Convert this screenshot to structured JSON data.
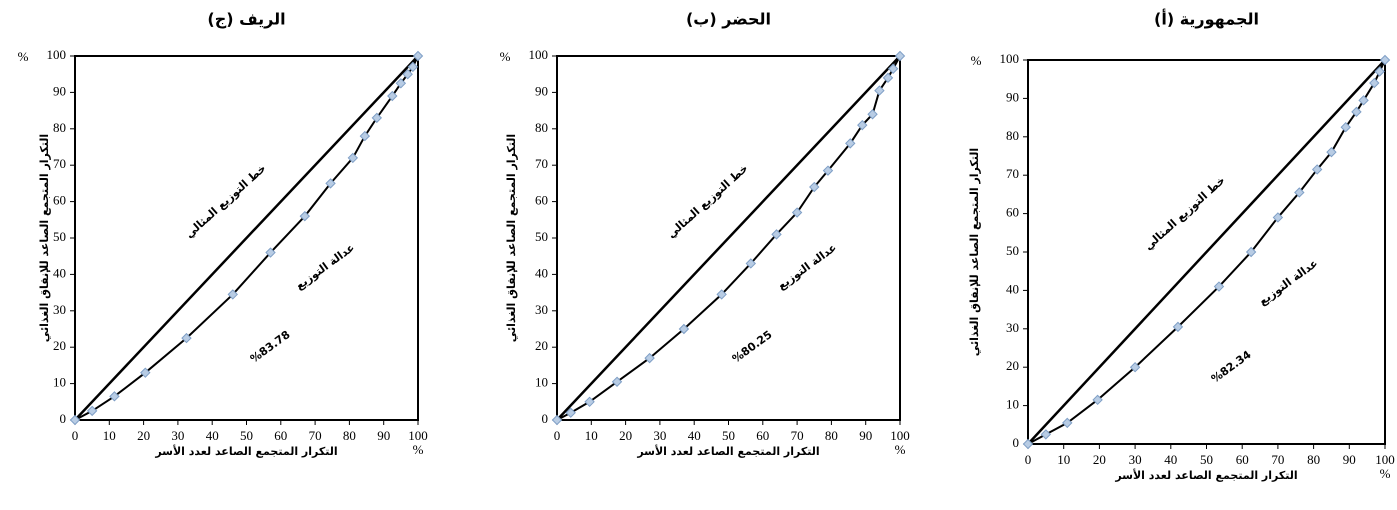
{
  "chart_data": [
    {
      "type": "line",
      "title": "(ج) الريف",
      "x_label": "التكرار المتجمع الصاعد لعدد الأسر",
      "y_label": "التكرار المتجمع الصاعد للإنفاق الغذائي",
      "x_unit": "%",
      "y_unit": "%",
      "equality_label": "خط التوزيع المثالي",
      "curve_label": "عدالة التوزيع",
      "equity_value": "%83.78",
      "xlim": [
        0,
        100
      ],
      "ylim": [
        0,
        100
      ],
      "xticks": [
        0,
        10,
        20,
        30,
        40,
        50,
        60,
        70,
        80,
        90,
        100
      ],
      "yticks": [
        0,
        10,
        20,
        30,
        40,
        50,
        60,
        70,
        80,
        90,
        100
      ],
      "series": [
        {
          "color": "#000000",
          "x": [
            0,
            100
          ],
          "values": [
            0,
            100
          ]
        },
        {
          "color": "#000000",
          "marker_color": "#b8cce4",
          "x": [
            0,
            5,
            11.5,
            20.5,
            32.5,
            46,
            57,
            67,
            74.5,
            81,
            84.5,
            88,
            92.5,
            95,
            97,
            98.5,
            100
          ],
          "values": [
            0,
            2.5,
            6.5,
            13,
            22.5,
            34.5,
            46,
            56,
            65,
            72,
            78,
            83,
            89,
            92.5,
            95,
            97,
            100
          ]
        }
      ]
    },
    {
      "type": "line",
      "title": "(ب) الحضر",
      "x_label": "التكرار المتجمع الصاعد لعدد الأسر",
      "y_label": "التكرار المتجمع الصاعد للإنفاق الغذائي",
      "x_unit": "%",
      "y_unit": "%",
      "equality_label": "خط التوزيع المثالي",
      "curve_label": "عدالة التوزيع",
      "equity_value": "%80.25",
      "xlim": [
        0,
        100
      ],
      "ylim": [
        0,
        100
      ],
      "xticks": [
        0,
        10,
        20,
        30,
        40,
        50,
        60,
        70,
        80,
        90,
        100
      ],
      "yticks": [
        0,
        10,
        20,
        30,
        40,
        50,
        60,
        70,
        80,
        90,
        100
      ],
      "series": [
        {
          "color": "#000000",
          "x": [
            0,
            100
          ],
          "values": [
            0,
            100
          ]
        },
        {
          "color": "#000000",
          "marker_color": "#b8cce4",
          "x": [
            0,
            4,
            9.5,
            17.5,
            27,
            37,
            48,
            56.5,
            64,
            70,
            75,
            79,
            85.5,
            89,
            92,
            94,
            96.5,
            98,
            100
          ],
          "values": [
            0,
            2,
            5,
            10.5,
            17,
            25,
            34.5,
            43,
            51,
            57,
            64,
            68.5,
            76,
            81,
            84,
            90.5,
            94,
            96.5,
            100
          ]
        }
      ]
    },
    {
      "type": "line",
      "title": "(أ) الجمهورية",
      "x_label": "التكرار المتجمع الصاعد لعدد الأسر",
      "y_label": "التكرار المتجمع الصاعد للإنفاق الغذائي",
      "x_unit": "%",
      "y_unit": "%",
      "equality_label": "خط التوزيع المثالي",
      "curve_label": "عدالة التوزيع",
      "equity_value": "%82.34",
      "xlim": [
        0,
        100
      ],
      "ylim": [
        0,
        100
      ],
      "xticks": [
        0,
        10,
        20,
        30,
        40,
        50,
        60,
        70,
        80,
        90,
        100
      ],
      "yticks": [
        0,
        10,
        20,
        30,
        40,
        50,
        60,
        70,
        80,
        90,
        100
      ],
      "series": [
        {
          "color": "#000000",
          "x": [
            0,
            100
          ],
          "values": [
            0,
            100
          ]
        },
        {
          "color": "#000000",
          "marker_color": "#b8cce4",
          "x": [
            0,
            5,
            11,
            19.5,
            30,
            42,
            53.5,
            62.5,
            70,
            76,
            81,
            85,
            89,
            92,
            94,
            97,
            98.5,
            100
          ],
          "values": [
            0,
            2.5,
            5.5,
            11.5,
            20,
            30.5,
            41,
            50,
            59,
            65.5,
            71.5,
            76,
            82.5,
            86.5,
            89.5,
            94,
            97,
            100
          ]
        }
      ]
    }
  ]
}
